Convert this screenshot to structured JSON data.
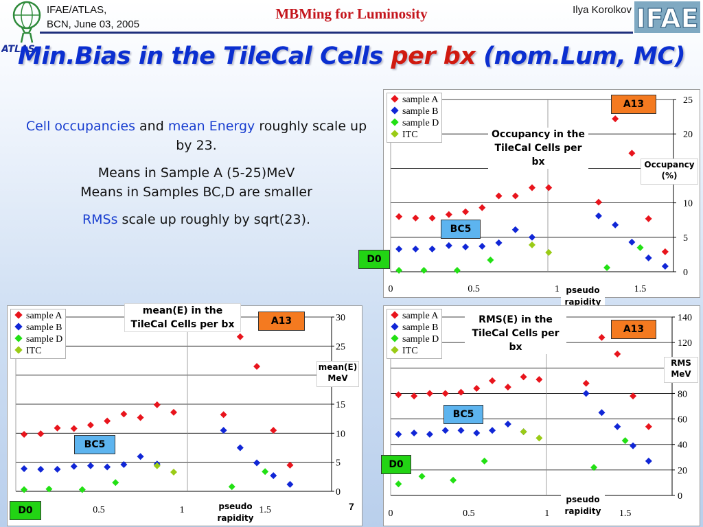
{
  "header": {
    "left_line1": "IFAE/ATLAS,",
    "left_line2": "BCN, June 03, 2005",
    "center": "MBMing for Luminosity",
    "right": "Ilya Korolkov",
    "atlas_logo_text": "ATLAS",
    "ifae_logo_text": "IFAE"
  },
  "title": {
    "part1": "Min.Bias in the TileCal Cells ",
    "part2": "per bx",
    "part3": " (nom.Lum, MC)"
  },
  "text": {
    "p1_blue1": "Cell occupancies",
    "p1_mid": " and ",
    "p1_blue2": "mean Energy",
    "p1_rest": " roughly scale up by 23.",
    "p2_line1": "Means in Sample A (5-25)MeV",
    "p2_line2": "Means in Samples BC,D are smaller",
    "p3_blue": "RMSs",
    "p3_rest": " scale up roughly by sqrt(23)."
  },
  "page_number": "7",
  "colors": {
    "sampleA": "#e8141c",
    "sampleB": "#1026d6",
    "sampleD": "#22e014",
    "itc": "#9acb16",
    "a13": "#f47a20",
    "bc5": "#5db4ef",
    "d0": "#22d414"
  },
  "chart_data": [
    {
      "type": "scatter",
      "title": "Occupancy in the TileCal Cells per bx",
      "xlabel": "pseudo rapidity",
      "ylabel": "Occupancy (%)",
      "xlim": [
        0,
        1.7
      ],
      "ylim": [
        0,
        25
      ],
      "xticks": [
        "0",
        "0.5",
        "1",
        "1.5"
      ],
      "yticks": [
        "0",
        "5",
        "10",
        "15",
        "20",
        "25"
      ],
      "region_labels": [
        "A13",
        "BC5",
        "D0"
      ],
      "series": [
        {
          "name": "sample A",
          "x": [
            0.05,
            0.15,
            0.25,
            0.35,
            0.45,
            0.55,
            0.65,
            0.75,
            0.85,
            0.95,
            1.25,
            1.35,
            1.45,
            1.55,
            1.65
          ],
          "y": [
            8.0,
            7.8,
            7.8,
            8.3,
            8.7,
            9.3,
            11.0,
            11.0,
            12.2,
            12.2,
            10.1,
            22.2,
            17.2,
            7.7,
            2.9
          ]
        },
        {
          "name": "sample B",
          "x": [
            0.05,
            0.15,
            0.25,
            0.35,
            0.45,
            0.55,
            0.65,
            0.75,
            0.85,
            1.25,
            1.35,
            1.45,
            1.55,
            1.65
          ],
          "y": [
            3.3,
            3.3,
            3.3,
            3.8,
            3.6,
            3.7,
            4.2,
            6.1,
            5.0,
            8.1,
            6.8,
            4.3,
            2.0,
            0.8
          ]
        },
        {
          "name": "sample D",
          "x": [
            0.05,
            0.2,
            0.4,
            0.6,
            1.3,
            1.5
          ],
          "y": [
            0.2,
            0.2,
            0.2,
            1.7,
            0.6,
            3.5
          ]
        },
        {
          "name": "ITC",
          "x": [
            0.85,
            0.95
          ],
          "y": [
            3.9,
            2.8
          ]
        }
      ]
    },
    {
      "type": "scatter",
      "title": "mean(E) in the TileCal Cells per bx",
      "xlabel": "pseudo rapidity",
      "ylabel": "mean(E) MeV",
      "xlim": [
        0,
        1.9
      ],
      "ylim": [
        0,
        30
      ],
      "xticks": [
        "0.5",
        "1",
        "1.5"
      ],
      "yticks": [
        "0",
        "5",
        "10",
        "15",
        "20",
        "25",
        "30"
      ],
      "region_labels": [
        "A13",
        "BC5",
        "D0"
      ],
      "series": [
        {
          "name": "sample A",
          "x": [
            0.05,
            0.15,
            0.25,
            0.35,
            0.45,
            0.55,
            0.65,
            0.75,
            0.85,
            0.95,
            1.25,
            1.35,
            1.45,
            1.55,
            1.65
          ],
          "y": [
            9.8,
            9.9,
            10.9,
            10.8,
            11.4,
            12.1,
            13.3,
            12.7,
            14.9,
            13.6,
            13.2,
            26.6,
            21.5,
            10.5,
            4.5
          ]
        },
        {
          "name": "sample B",
          "x": [
            0.05,
            0.15,
            0.25,
            0.35,
            0.45,
            0.55,
            0.65,
            0.75,
            0.85,
            1.25,
            1.35,
            1.45,
            1.55,
            1.65
          ],
          "y": [
            3.9,
            3.8,
            3.8,
            4.3,
            4.4,
            4.2,
            4.6,
            6.0,
            4.7,
            10.5,
            7.5,
            4.9,
            2.7,
            1.2
          ]
        },
        {
          "name": "sample D",
          "x": [
            0.05,
            0.2,
            0.4,
            0.6,
            1.3,
            1.5
          ],
          "y": [
            0.3,
            0.4,
            0.3,
            1.5,
            0.8,
            3.4
          ]
        },
        {
          "name": "ITC",
          "x": [
            0.85,
            0.95
          ],
          "y": [
            4.4,
            3.3
          ]
        }
      ]
    },
    {
      "type": "scatter",
      "title": "RMS(E) in the TileCal Cells per bx",
      "xlabel": "pseudo rapidity",
      "ylabel": "RMS MeV",
      "xlim": [
        0,
        1.8
      ],
      "ylim": [
        0,
        140
      ],
      "xticks": [
        "0",
        "0.5",
        "1",
        "1.5"
      ],
      "yticks": [
        "0",
        "20",
        "40",
        "60",
        "80",
        "100",
        "120",
        "140"
      ],
      "region_labels": [
        "A13",
        "BC5",
        "D0"
      ],
      "series": [
        {
          "name": "sample A",
          "x": [
            0.05,
            0.15,
            0.25,
            0.35,
            0.45,
            0.55,
            0.65,
            0.75,
            0.85,
            0.95,
            1.25,
            1.35,
            1.45,
            1.55,
            1.65
          ],
          "y": [
            79,
            78,
            80,
            80,
            81,
            84,
            90,
            85,
            93,
            91,
            88,
            124,
            111,
            78,
            54
          ]
        },
        {
          "name": "sample B",
          "x": [
            0.05,
            0.15,
            0.25,
            0.35,
            0.45,
            0.55,
            0.65,
            0.75,
            0.85,
            1.25,
            1.35,
            1.45,
            1.55,
            1.65
          ],
          "y": [
            48,
            49,
            48,
            51,
            51,
            49,
            51,
            56,
            50,
            80,
            65,
            54,
            39,
            27
          ]
        },
        {
          "name": "sample D",
          "x": [
            0.05,
            0.2,
            0.4,
            0.6,
            1.3,
            1.5
          ],
          "y": [
            9,
            15,
            12,
            27,
            22,
            43
          ]
        },
        {
          "name": "ITC",
          "x": [
            0.85,
            0.95
          ],
          "y": [
            50,
            45
          ]
        }
      ]
    }
  ]
}
